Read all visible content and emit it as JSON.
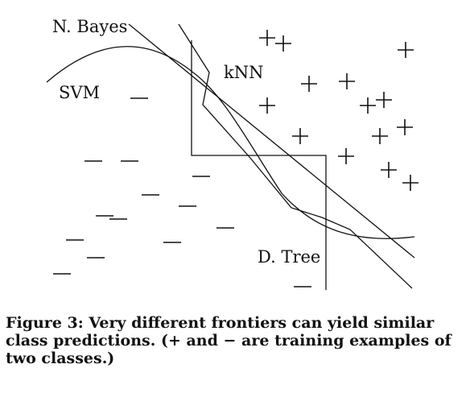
{
  "labels": {
    "naive_bayes": "N. Bayes",
    "svm": "SVM",
    "knn": "kNN",
    "decision_tree": "D. Tree"
  },
  "caption": {
    "line1": "Figure 3: Very different frontiers can yield similar",
    "line2": "class predictions. (+ and − are training examples of",
    "line3": "two classes.)"
  },
  "marker_symbols": {
    "positive": "+",
    "negative": "−"
  }
}
